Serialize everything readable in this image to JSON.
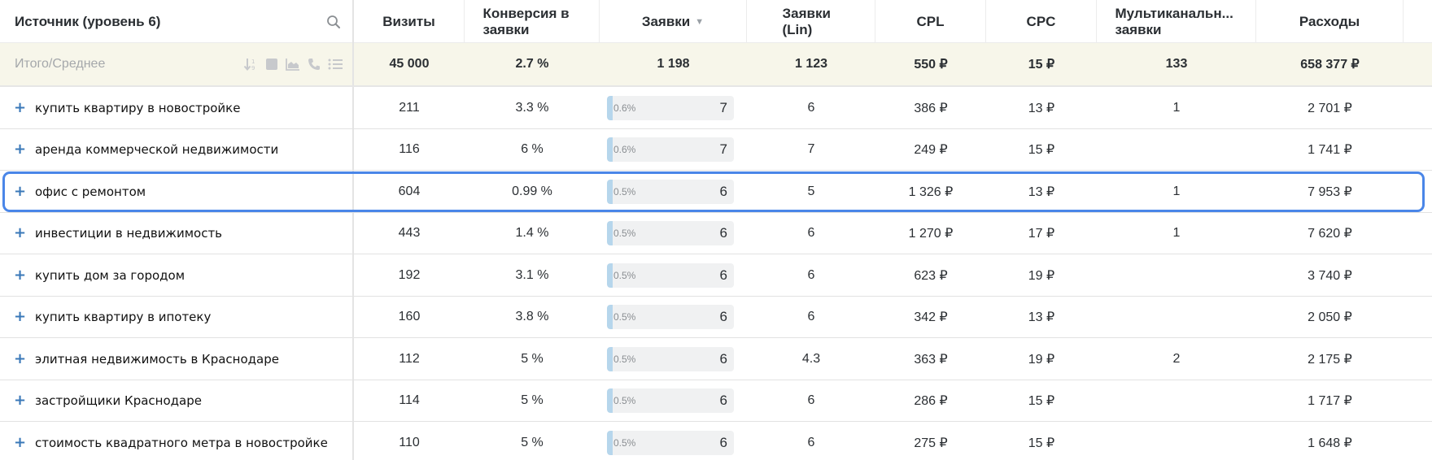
{
  "header": {
    "source_label": "Источник (уровень 6)",
    "columns": [
      {
        "key": "visits",
        "label": "Визиты"
      },
      {
        "key": "conv",
        "label": "Конверсия в заявки"
      },
      {
        "key": "leads",
        "label": "Заявки",
        "sort": "▼"
      },
      {
        "key": "leads_lin",
        "label": "Заявки (Lin)"
      },
      {
        "key": "cpl",
        "label": "CPL"
      },
      {
        "key": "cpc",
        "label": "CPC"
      },
      {
        "key": "multi",
        "label": "Мультиканальн... заявки"
      },
      {
        "key": "cost",
        "label": "Расходы"
      }
    ]
  },
  "totals": {
    "label": "Итого/Среднее",
    "visits": "45 000",
    "conv": "2.7 %",
    "leads": "1 198",
    "leads_lin": "1 123",
    "cpl": "550 ₽",
    "cpc": "15 ₽",
    "multi": "133",
    "cost": "658 377 ₽"
  },
  "rows": [
    {
      "source": "купить квартиру в новостройке",
      "visits": "211",
      "conv": "3.3 %",
      "leads_pct": "0.6%",
      "leads": "7",
      "leads_lin": "6",
      "cpl": "386 ₽",
      "cpc": "13 ₽",
      "multi": "1",
      "cost": "2 701 ₽"
    },
    {
      "source": "аренда коммерческой недвижимости",
      "visits": "116",
      "conv": "6 %",
      "leads_pct": "0.6%",
      "leads": "7",
      "leads_lin": "7",
      "cpl": "249 ₽",
      "cpc": "15 ₽",
      "multi": "",
      "cost": "1 741 ₽"
    },
    {
      "source": "офис с ремонтом",
      "visits": "604",
      "conv": "0.99 %",
      "leads_pct": "0.5%",
      "leads": "6",
      "leads_lin": "5",
      "cpl": "1 326 ₽",
      "cpc": "13 ₽",
      "multi": "1",
      "cost": "7 953 ₽",
      "selected": true
    },
    {
      "source": "инвестиции в недвижимость",
      "visits": "443",
      "conv": "1.4 %",
      "leads_pct": "0.5%",
      "leads": "6",
      "leads_lin": "6",
      "cpl": "1 270 ₽",
      "cpc": "17 ₽",
      "multi": "1",
      "cost": "7 620 ₽"
    },
    {
      "source": "купить дом за городом",
      "visits": "192",
      "conv": "3.1 %",
      "leads_pct": "0.5%",
      "leads": "6",
      "leads_lin": "6",
      "cpl": "623 ₽",
      "cpc": "19 ₽",
      "multi": "",
      "cost": "3 740 ₽"
    },
    {
      "source": "купить квартиру в ипотеку",
      "visits": "160",
      "conv": "3.8 %",
      "leads_pct": "0.5%",
      "leads": "6",
      "leads_lin": "6",
      "cpl": "342 ₽",
      "cpc": "13 ₽",
      "multi": "",
      "cost": "2 050 ₽"
    },
    {
      "source": "элитная недвижимость в Краснодаре",
      "visits": "112",
      "conv": "5 %",
      "leads_pct": "0.5%",
      "leads": "6",
      "leads_lin": "4.3",
      "cpl": "363 ₽",
      "cpc": "19 ₽",
      "multi": "2",
      "cost": "2 175 ₽"
    },
    {
      "source": "застройщики Краснодаре",
      "visits": "114",
      "conv": "5 %",
      "leads_pct": "0.5%",
      "leads": "6",
      "leads_lin": "6",
      "cpl": "286 ₽",
      "cpc": "15 ₽",
      "multi": "",
      "cost": "1 717 ₽"
    },
    {
      "source": "стоимость квадратного метра в новостройке",
      "visits": "110",
      "conv": "5 %",
      "leads_pct": "0.5%",
      "leads": "6",
      "leads_lin": "6",
      "cpl": "275 ₽",
      "cpc": "15 ₽",
      "multi": "",
      "cost": "1 648 ₽"
    }
  ],
  "icons": {
    "search": "search-icon",
    "sort_numeric": "sort-numeric-icon",
    "square": "stop-square-icon",
    "area_chart": "area-chart-icon",
    "phone": "phone-icon",
    "list": "list-icon",
    "expand": "+"
  },
  "colors": {
    "accent_outline": "#4a86e8",
    "expand_plus": "#3a78b8",
    "totals_bg": "#f7f6ea",
    "bar_fill": "#b6d6ec",
    "bar_bg": "#f0f1f2"
  }
}
